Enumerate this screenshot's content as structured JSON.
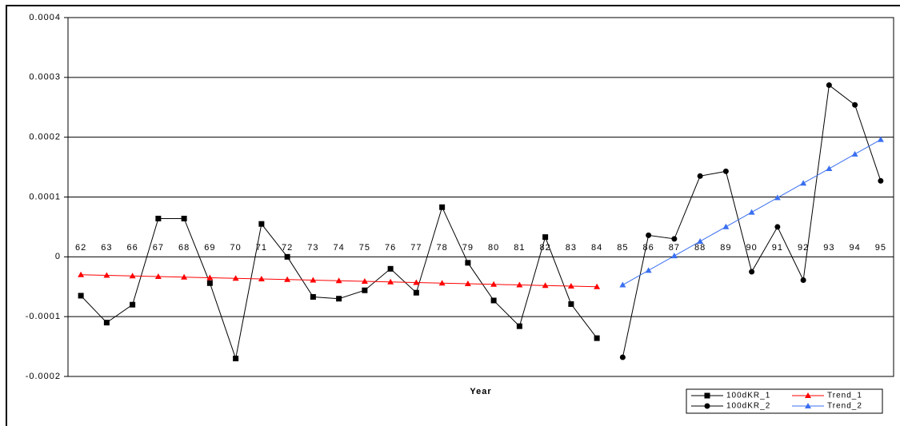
{
  "chart_data": {
    "type": "line",
    "x_label": "Year",
    "categories": [
      "62",
      "63",
      "66",
      "67",
      "68",
      "69",
      "70",
      "71",
      "72",
      "73",
      "74",
      "75",
      "76",
      "77",
      "78",
      "79",
      "80",
      "81",
      "82",
      "83",
      "84",
      "85",
      "86",
      "87",
      "88",
      "89",
      "90",
      "91",
      "92",
      "93",
      "94",
      "95"
    ],
    "ylim": [
      -0.0002,
      0.0004
    ],
    "yticks": [
      -0.0002,
      -0.0001,
      0,
      0.0001,
      0.0002,
      0.0003,
      0.0004
    ],
    "grid": true,
    "legend": "bottom-right",
    "series": [
      {
        "name": "100dKR_1",
        "color": "#000000",
        "marker": "square",
        "values": [
          -6.5e-05,
          -0.00011,
          -8e-05,
          6.4e-05,
          6.4e-05,
          -4.4e-05,
          -0.00017,
          5.5e-05,
          0,
          -6.7e-05,
          -7e-05,
          -5.6e-05,
          -2e-05,
          -6e-05,
          8.3e-05,
          -1e-05,
          -7.3e-05,
          -0.000116,
          3.3e-05,
          -7.9e-05,
          -0.000136,
          null,
          null,
          null,
          null,
          null,
          null,
          null,
          null,
          null,
          null,
          null
        ]
      },
      {
        "name": "Trend_1",
        "color": "#ff0000",
        "marker": "triangle",
        "values": [
          -3e-05,
          -3.1e-05,
          -3.2e-05,
          -3.3e-05,
          -3.4e-05,
          -3.5e-05,
          -3.6e-05,
          -3.7e-05,
          -3.8e-05,
          -3.9e-05,
          -4e-05,
          -4.1e-05,
          -4.2e-05,
          -4.3e-05,
          -4.4e-05,
          -4.5e-05,
          -4.6e-05,
          -4.7e-05,
          -4.8e-05,
          -4.9e-05,
          -5e-05,
          null,
          null,
          null,
          null,
          null,
          null,
          null,
          null,
          null,
          null,
          null
        ]
      },
      {
        "name": "100dKR_2",
        "color": "#000000",
        "marker": "circle",
        "values": [
          null,
          null,
          null,
          null,
          null,
          null,
          null,
          null,
          null,
          null,
          null,
          null,
          null,
          null,
          null,
          null,
          null,
          null,
          null,
          null,
          null,
          -0.000168,
          3.6e-05,
          3e-05,
          0.000135,
          0.000143,
          -2.5e-05,
          5e-05,
          -3.9e-05,
          0.000287,
          0.000254,
          0.000127
        ]
      },
      {
        "name": "Trend_2",
        "color": "#3a6ff0",
        "marker": "triangle",
        "values": [
          null,
          null,
          null,
          null,
          null,
          null,
          null,
          null,
          null,
          null,
          null,
          null,
          null,
          null,
          null,
          null,
          null,
          null,
          null,
          null,
          null,
          -4.7e-05,
          -2.27e-05,
          1.6e-06,
          2.59e-05,
          5.02e-05,
          7.45e-05,
          9.88e-05,
          0.0001231,
          0.0001474,
          0.0001717,
          0.000196
        ]
      }
    ]
  }
}
